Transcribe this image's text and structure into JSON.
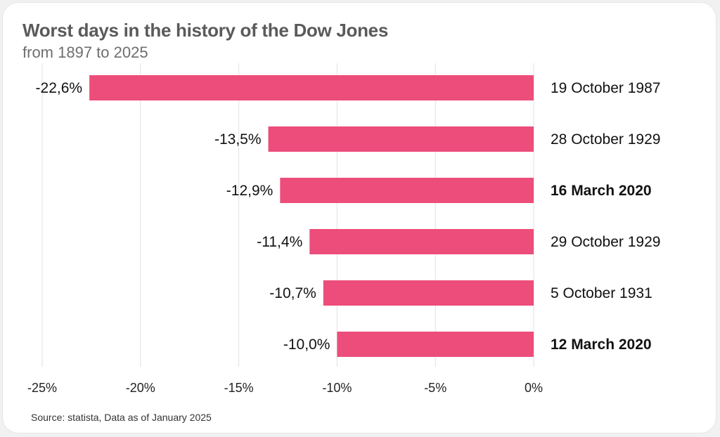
{
  "header": {
    "title": "Worst days in the history of the Dow Jones",
    "subtitle": "from 1897 to 2025"
  },
  "footer": {
    "source": "Source: statista, Data as of January 2025"
  },
  "colors": {
    "bar": "#ec4d7a"
  },
  "chart_data": {
    "type": "bar",
    "orientation": "horizontal",
    "categories": [
      "19 October 1987",
      "28 October 1929",
      "16 March 2020",
      "29 October 1929",
      "5 October 1931",
      "12 March 2020"
    ],
    "values": [
      -22.6,
      -13.5,
      -12.9,
      -11.4,
      -10.7,
      -10.0
    ],
    "value_labels": [
      "-22,6%",
      "-13,5%",
      "-12,9%",
      "-11,4%",
      "-10,7%",
      "-10,0%"
    ],
    "bold_categories": [
      "16 March 2020",
      "12 March 2020"
    ],
    "xlim": [
      -25,
      0
    ],
    "xticks": [
      -25,
      -20,
      -15,
      -10,
      -5,
      0
    ],
    "xtick_labels": [
      "-25%",
      "-20%",
      "-15%",
      "-10%",
      "-5%",
      "0%"
    ],
    "grid": true
  }
}
